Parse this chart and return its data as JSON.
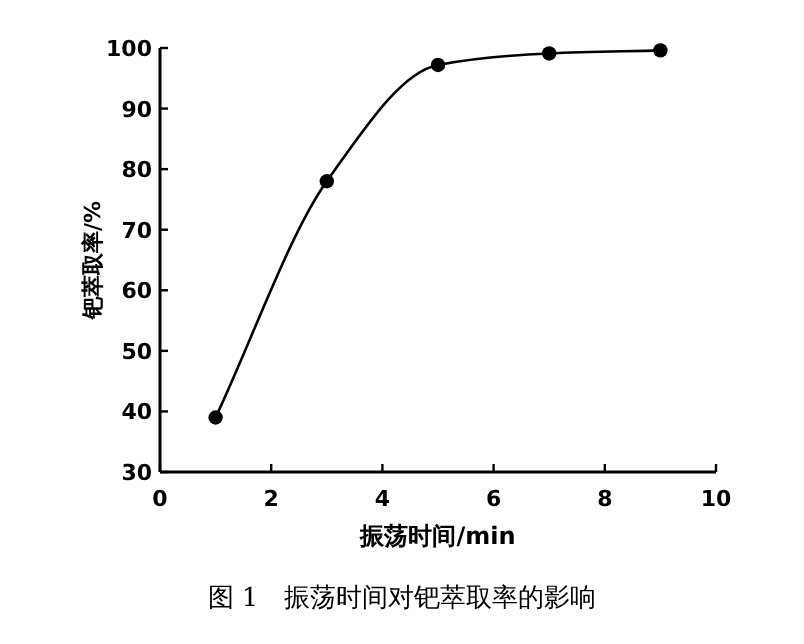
{
  "chart_data": {
    "type": "line",
    "xlabel": "振荡时间/min",
    "ylabel": "钯萃取率/%",
    "annotations": [
      "图 1　振荡时间对钯萃取率的影响"
    ],
    "x": [
      1,
      3,
      5,
      7,
      9
    ],
    "values": [
      39,
      78,
      97.2,
      99.1,
      99.6
    ],
    "color": "#000000",
    "xlim": [
      0,
      10
    ],
    "ylim": [
      30,
      100
    ],
    "xticks": [
      0,
      2,
      4,
      6,
      8,
      10
    ],
    "yticks": [
      30,
      40,
      50,
      60,
      70,
      80,
      90,
      100
    ],
    "marker": "circle",
    "line_style": "solid",
    "grid": false
  }
}
